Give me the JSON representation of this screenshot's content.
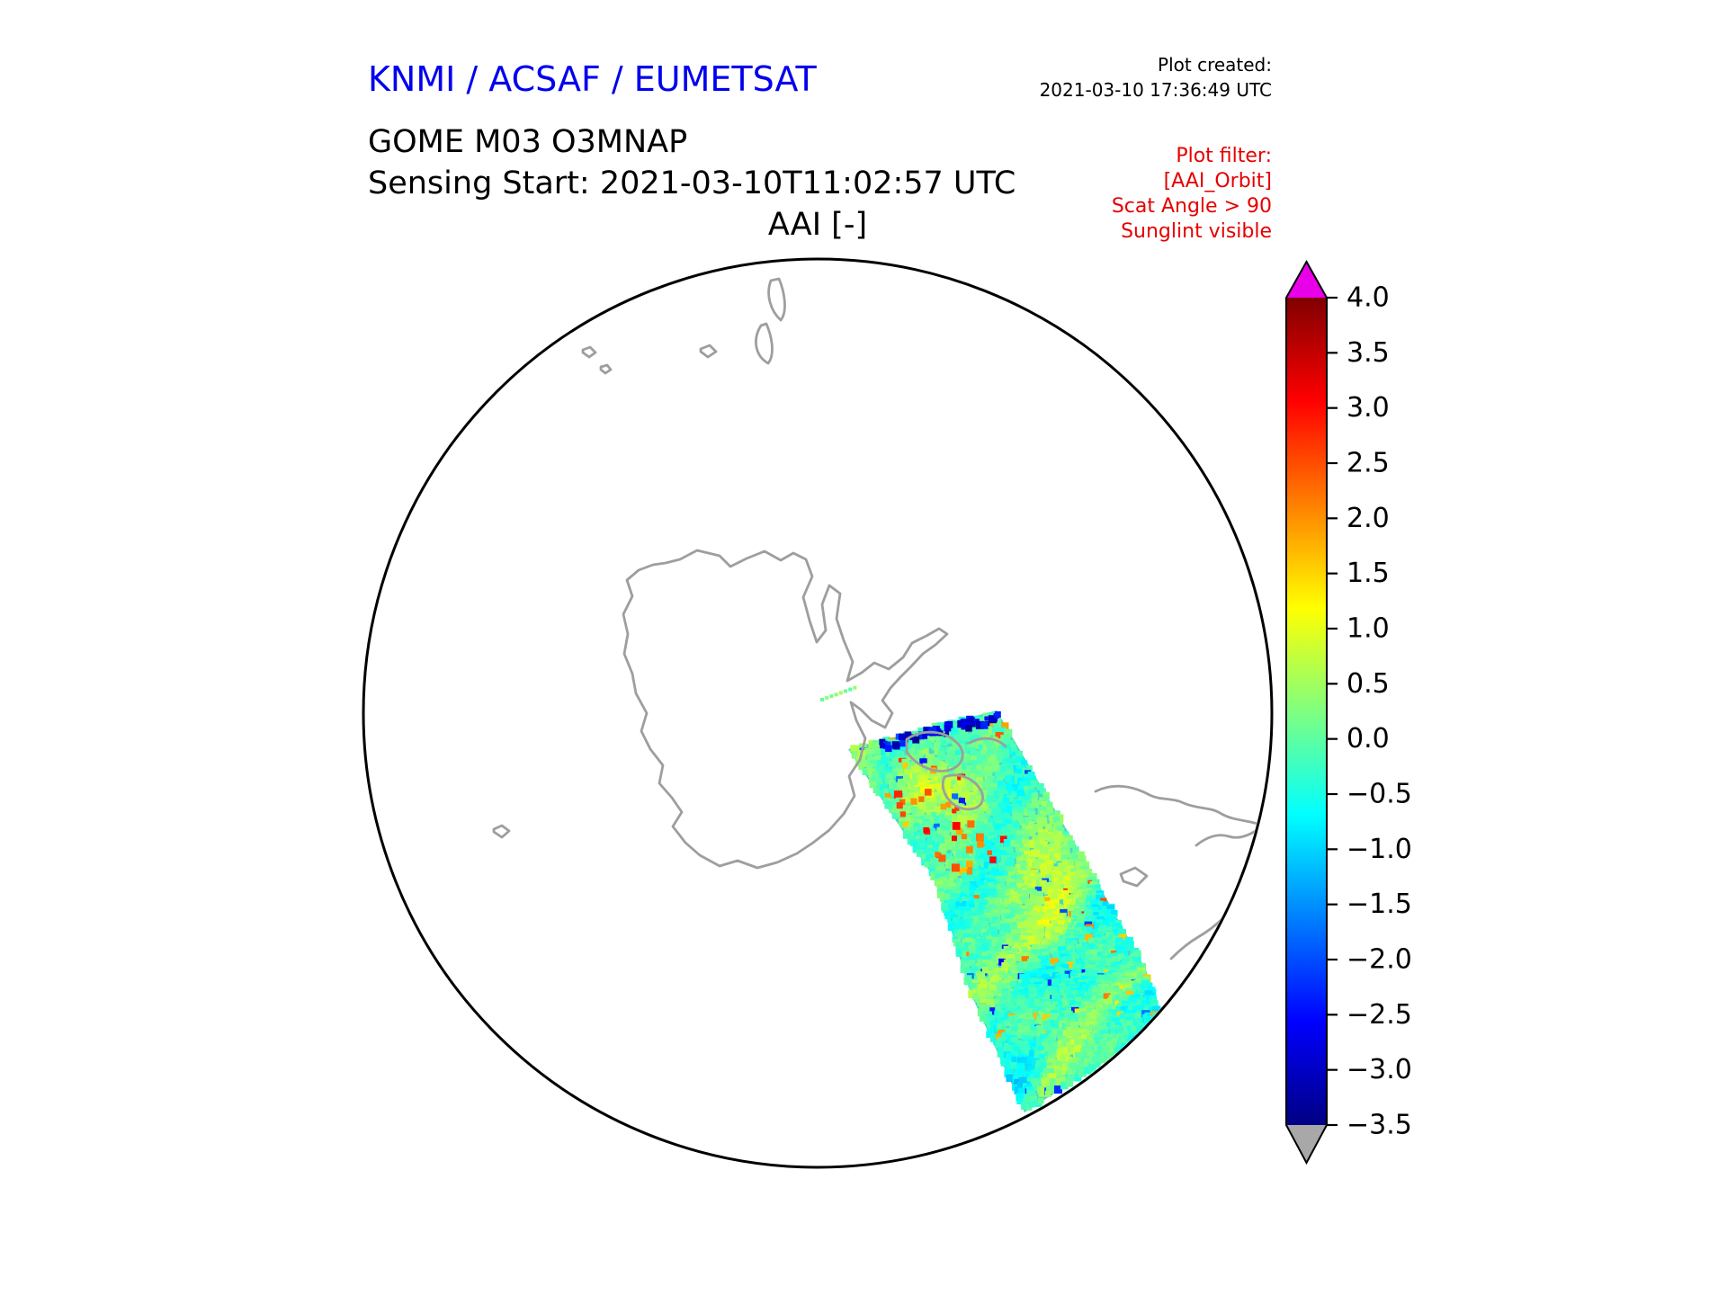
{
  "header": {
    "agency": "KNMI / ACSAF / EUMETSAT",
    "created_label": "Plot created:",
    "created_value": "2021-03-10 17:36:49 UTC",
    "product": "GOME M03 O3MNAP",
    "sensing_start": "Sensing Start: 2021-03-10T11:02:57 UTC"
  },
  "filter": {
    "lines": [
      "Plot filter:",
      "[AAI_Orbit]",
      "Scat Angle > 90",
      "Sunglint visible"
    ]
  },
  "colors": {
    "agency_blue": "#0000ee",
    "filter_red": "#e60000",
    "text_black": "#000000",
    "coast_gray": "#9e9e9e",
    "map_outline": "#000000",
    "swath_base": "#45d8c5"
  },
  "chart_data": {
    "type": "heatmap",
    "title": "AAI [-]",
    "projection": "South polar stereographic map with Antarctica coastlines",
    "legend_position": "right vertical colorbar with over/under arrows",
    "colorbar": {
      "min": -3.5,
      "max": 4.0,
      "ticks": [
        4.0,
        3.5,
        3.0,
        2.5,
        2.0,
        1.5,
        1.0,
        0.5,
        0.0,
        -0.5,
        -1.0,
        -1.5,
        -2.0,
        -2.5,
        -3.0,
        -3.5
      ],
      "tick_labels": [
        "4.0",
        "3.5",
        "3.0",
        "2.5",
        "2.0",
        "1.5",
        "1.0",
        "0.5",
        "0.0",
        "−0.5",
        "−1.0",
        "−1.5",
        "−2.0",
        "−2.5",
        "−3.0",
        "−3.5"
      ],
      "colormap": "jet",
      "gradient_stops": [
        {
          "pos": 0.0,
          "color": "#000083"
        },
        {
          "pos": 0.125,
          "color": "#0000ff"
        },
        {
          "pos": 0.375,
          "color": "#00ffff"
        },
        {
          "pos": 0.625,
          "color": "#ffff00"
        },
        {
          "pos": 0.875,
          "color": "#ff0000"
        },
        {
          "pos": 1.0,
          "color": "#800000"
        }
      ],
      "over_arrow_color": "#e800e8",
      "under_arrow_color": "#a8a8a8"
    },
    "swath": {
      "description": "Single GOME-2 orbit swath of Absorbing Aerosol Index crossing the Antarctic Peninsula region toward the lower right of the polar map; background values mostly between −1.5 and +1.0 (cyan–green–yellow), scattered spots up to ≈ +3 (orange/red) near the peninsula coast and isolated values below −2 (dark blue) along the upper swath edge; a tiny detached green/cyan data streak lies near the pole.",
      "typical_range": [
        -1.5,
        1.0
      ],
      "spot_max": 3.0,
      "spot_min": -3.0
    }
  }
}
